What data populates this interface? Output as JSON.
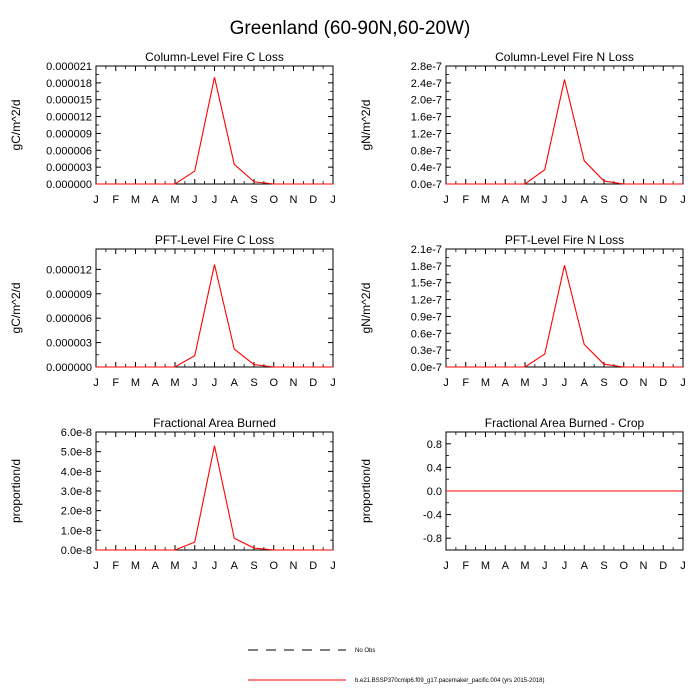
{
  "figure_title": "Greenland (60-90N,60-20W)",
  "colors": {
    "series": "#ff0000",
    "axis": "#000000",
    "obs": "#000000"
  },
  "legend": {
    "items": [
      {
        "label": "No Obs",
        "style": "dashed",
        "color": "#000000"
      },
      {
        "label": "b.e21.BSSP370cmip6.f09_g17.pacemaker_pacific.004 (yrs 2015-2018)",
        "style": "solid",
        "color": "#ff0000"
      }
    ]
  },
  "chart_data": [
    {
      "type": "line",
      "title": "Column-Level Fire C Loss",
      "ylabel": "gC/m^2/d",
      "categories": [
        "J",
        "F",
        "M",
        "A",
        "M",
        "J",
        "J",
        "A",
        "S",
        "O",
        "N",
        "D",
        "J"
      ],
      "ylim": [
        0,
        2.1e-05
      ],
      "yticks": [
        0,
        3e-06,
        6e-06,
        9e-06,
        1.2e-05,
        1.5e-05,
        1.8e-05,
        2.1e-05
      ],
      "ytick_labels": [
        "0.000000",
        "0.000003",
        "0.000006",
        "0.000009",
        "0.000012",
        "0.000015",
        "0.000018",
        "0.000021"
      ],
      "series": [
        {
          "name": "b.e21.BSSP370cmip6.f09_g17.pacemaker_pacific.004",
          "values": [
            0,
            0,
            0,
            0,
            0,
            2.3e-06,
            1.9e-05,
            3.5e-06,
            4e-07,
            0,
            0,
            0,
            0
          ]
        }
      ]
    },
    {
      "type": "line",
      "title": "Column-Level Fire N Loss",
      "ylabel": "gN/m^2/d",
      "categories": [
        "J",
        "F",
        "M",
        "A",
        "M",
        "J",
        "J",
        "A",
        "S",
        "O",
        "N",
        "D",
        "J"
      ],
      "ylim": [
        0,
        2.8e-07
      ],
      "yticks": [
        0,
        4e-08,
        8e-08,
        1.2e-07,
        1.6e-07,
        2e-07,
        2.4e-07,
        2.8e-07
      ],
      "ytick_labels": [
        "0.0e-7",
        "0.4e-7",
        "0.8e-7",
        "1.2e-7",
        "1.6e-7",
        "2.0e-7",
        "2.4e-7",
        "2.8e-7"
      ],
      "series": [
        {
          "name": "b.e21.BSSP370cmip6.f09_g17.pacemaker_pacific.004",
          "values": [
            0,
            0,
            0,
            0,
            0,
            3.4e-08,
            2.48e-07,
            5.5e-08,
            7e-09,
            0,
            0,
            0,
            0
          ]
        }
      ]
    },
    {
      "type": "line",
      "title": "PFT-Level Fire C Loss",
      "ylabel": "gC/m^2/d",
      "categories": [
        "J",
        "F",
        "M",
        "A",
        "M",
        "J",
        "J",
        "A",
        "S",
        "O",
        "N",
        "D",
        "J"
      ],
      "ylim": [
        0,
        1.45e-05
      ],
      "yticks": [
        0,
        3e-06,
        6e-06,
        9e-06,
        1.2e-05
      ],
      "ytick_labels": [
        "0.000000",
        "0.000003",
        "0.000006",
        "0.000009",
        "0.000012"
      ],
      "series": [
        {
          "name": "b.e21.BSSP370cmip6.f09_g17.pacemaker_pacific.004",
          "values": [
            0,
            0,
            0,
            0,
            0,
            1.4e-06,
            1.26e-05,
            2.2e-06,
            3e-07,
            0,
            0,
            0,
            0
          ]
        }
      ]
    },
    {
      "type": "line",
      "title": "PFT-Level Fire N Loss",
      "ylabel": "gN/m^2/d",
      "categories": [
        "J",
        "F",
        "M",
        "A",
        "M",
        "J",
        "J",
        "A",
        "S",
        "O",
        "N",
        "D",
        "J"
      ],
      "ylim": [
        0,
        2.1e-07
      ],
      "yticks": [
        0,
        3e-08,
        6e-08,
        9e-08,
        1.2e-07,
        1.5e-07,
        1.8e-07,
        2.1e-07
      ],
      "ytick_labels": [
        "0.0e-7",
        "0.3e-7",
        "0.6e-7",
        "0.9e-7",
        "1.2e-7",
        "1.5e-7",
        "1.8e-7",
        "2.1e-7"
      ],
      "series": [
        {
          "name": "b.e21.BSSP370cmip6.f09_g17.pacemaker_pacific.004",
          "values": [
            0,
            0,
            0,
            0,
            0,
            2.3e-08,
            1.81e-07,
            4e-08,
            5e-09,
            0,
            0,
            0,
            0
          ]
        }
      ]
    },
    {
      "type": "line",
      "title": "Fractional Area Burned",
      "ylabel": "proportion/d",
      "categories": [
        "J",
        "F",
        "M",
        "A",
        "M",
        "J",
        "J",
        "A",
        "S",
        "O",
        "N",
        "D",
        "J"
      ],
      "ylim": [
        0,
        6e-08
      ],
      "yticks": [
        0,
        1e-08,
        2e-08,
        3e-08,
        4e-08,
        5e-08,
        6e-08
      ],
      "ytick_labels": [
        "0.0e-8",
        "1.0e-8",
        "2.0e-8",
        "3.0e-8",
        "4.0e-8",
        "5.0e-8",
        "6.0e-8"
      ],
      "series": [
        {
          "name": "b.e21.BSSP370cmip6.f09_g17.pacemaker_pacific.004",
          "values": [
            0,
            0,
            0,
            0,
            0,
            4e-09,
            5.3e-08,
            6e-09,
            1e-09,
            0,
            0,
            0,
            0
          ]
        }
      ]
    },
    {
      "type": "line",
      "title": "Fractional Area Burned - Crop",
      "ylabel": "proportion/d",
      "categories": [
        "J",
        "F",
        "M",
        "A",
        "M",
        "J",
        "J",
        "A",
        "S",
        "O",
        "N",
        "D",
        "J"
      ],
      "ylim": [
        -1.0,
        1.0
      ],
      "yticks": [
        -0.8,
        -0.4,
        0.0,
        0.4,
        0.8
      ],
      "ytick_labels": [
        "-0.8",
        "-0.4",
        "0.0",
        "0.4",
        "0.8"
      ],
      "series": [
        {
          "name": "b.e21.BSSP370cmip6.f09_g17.pacemaker_pacific.004",
          "values": [
            0,
            0,
            0,
            0,
            0,
            0,
            0,
            0,
            0,
            0,
            0,
            0,
            0
          ]
        }
      ]
    }
  ]
}
